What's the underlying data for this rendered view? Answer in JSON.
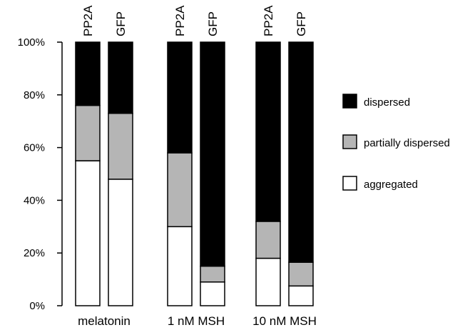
{
  "chart_data": {
    "type": "bar",
    "stacked": true,
    "y_tick_labels": [
      "0%",
      "20%",
      "40%",
      "60%",
      "80%",
      "100%"
    ],
    "ylim": [
      0,
      100
    ],
    "groups": [
      {
        "label": "melatonin",
        "bars": [
          {
            "label": "PP2A",
            "aggregated": 55,
            "partially_dispersed": 21,
            "dispersed": 24
          },
          {
            "label": "GFP",
            "aggregated": 48,
            "partially_dispersed": 25,
            "dispersed": 27
          }
        ]
      },
      {
        "label": "1 nM MSH",
        "bars": [
          {
            "label": "PP2A",
            "aggregated": 30,
            "partially_dispersed": 28,
            "dispersed": 42
          },
          {
            "label": "GFP",
            "aggregated": 9,
            "partially_dispersed": 6,
            "dispersed": 85
          }
        ]
      },
      {
        "label": "10 nM MSH",
        "bars": [
          {
            "label": "PP2A",
            "aggregated": 18,
            "partially_dispersed": 14,
            "dispersed": 68
          },
          {
            "label": "GFP",
            "aggregated": 7.5,
            "partially_dispersed": 9,
            "dispersed": 83.5
          }
        ]
      }
    ],
    "legend": [
      {
        "key": "dispersed",
        "label": "dispersed",
        "color": "#000000"
      },
      {
        "key": "partially_dispersed",
        "label": "partially dispersed",
        "color": "#b5b5b5"
      },
      {
        "key": "aggregated",
        "label": "aggregated",
        "color": "#ffffff"
      }
    ],
    "legend_position": "right"
  }
}
